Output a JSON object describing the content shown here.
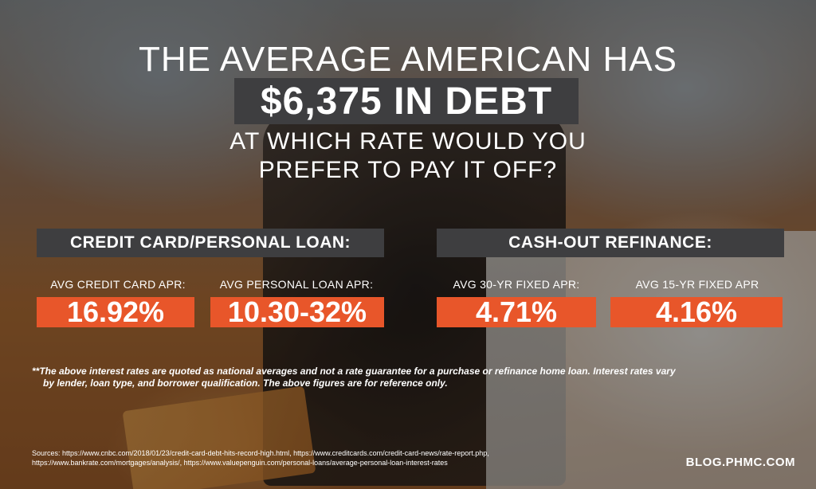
{
  "headline": {
    "line1": "THE AVERAGE AMERICAN HAS",
    "debt": "$6,375 IN DEBT",
    "line2a": "AT WHICH RATE WOULD YOU",
    "line2b": "PREFER TO PAY IT OFF?"
  },
  "sections": {
    "left": {
      "title": "CREDIT CARD/PERSONAL LOAN:",
      "items": [
        {
          "label": "AVG CREDIT CARD APR:",
          "value": "16.92%"
        },
        {
          "label": "AVG PERSONAL LOAN APR:",
          "value": "10.30-32%"
        }
      ]
    },
    "right": {
      "title": "CASH-OUT REFINANCE:",
      "items": [
        {
          "label": "AVG 30-YR FIXED APR:",
          "value": "4.71%"
        },
        {
          "label": "AVG 15-YR FIXED APR",
          "value": "4.16%"
        }
      ]
    }
  },
  "footnote": {
    "line1": "**The above interest rates are quoted as national averages and not a rate guarantee for a purchase or refinance home loan. Interest rates vary",
    "line2": "by lender, loan type, and borrower qualification. The above figures are for reference only."
  },
  "sources": {
    "line1": "Sources: https://www.cnbc.com/2018/01/23/credit-card-debt-hits-record-high.html, https://www.creditcards.com/credit-card-news/rate-report.php,",
    "line2": "https://www.bankrate.com/mortgages/analysis/, https://www.valuepenguin.com/personal-loans/average-personal-loan-interest-rates"
  },
  "brand": "BLOG.PHMC.COM",
  "colors": {
    "accent_orange": "#e8562a",
    "header_gray": "#3e3e40",
    "text": "#ffffff"
  }
}
